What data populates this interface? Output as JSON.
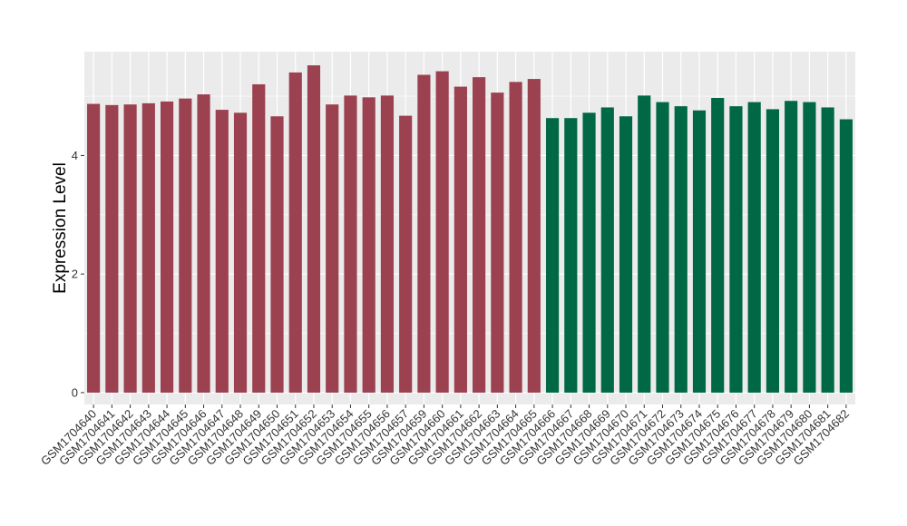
{
  "chart_data": {
    "type": "bar",
    "title": "",
    "xlabel": "",
    "ylabel": "Expression Level",
    "ylim": [
      -0.2,
      5.75
    ],
    "yticks": [
      0,
      2,
      4
    ],
    "grid": true,
    "colors": {
      "group1": "#9b4150",
      "group2": "#006845",
      "panel": "#ebebeb",
      "grid": "#ffffff"
    },
    "categories": [
      "GSM1704640",
      "GSM1704641",
      "GSM1704642",
      "GSM1704643",
      "GSM1704644",
      "GSM1704645",
      "GSM1704646",
      "GSM1704647",
      "GSM1704648",
      "GSM1704649",
      "GSM1704650",
      "GSM1704651",
      "GSM1704652",
      "GSM1704653",
      "GSM1704654",
      "GSM1704655",
      "GSM1704656",
      "GSM1704657",
      "GSM1704659",
      "GSM1704660",
      "GSM1704661",
      "GSM1704662",
      "GSM1704663",
      "GSM1704664",
      "GSM1704665",
      "GSM1704666",
      "GSM1704667",
      "GSM1704668",
      "GSM1704669",
      "GSM1704670",
      "GSM1704671",
      "GSM1704672",
      "GSM1704673",
      "GSM1704674",
      "GSM1704675",
      "GSM1704676",
      "GSM1704677",
      "GSM1704678",
      "GSM1704679",
      "GSM1704680",
      "GSM1704681",
      "GSM1704682"
    ],
    "values": [
      4.87,
      4.85,
      4.86,
      4.88,
      4.91,
      4.96,
      5.03,
      4.77,
      4.72,
      5.2,
      4.66,
      5.4,
      5.52,
      4.86,
      5.01,
      4.98,
      5.01,
      4.67,
      5.36,
      5.42,
      5.16,
      5.32,
      5.06,
      5.24,
      5.29,
      4.63,
      4.63,
      4.72,
      4.81,
      4.66,
      5.01,
      4.9,
      4.83,
      4.76,
      4.97,
      4.83,
      4.9,
      4.78,
      4.92,
      4.9,
      4.81,
      4.61
    ],
    "groups": [
      1,
      1,
      1,
      1,
      1,
      1,
      1,
      1,
      1,
      1,
      1,
      1,
      1,
      1,
      1,
      1,
      1,
      1,
      1,
      1,
      1,
      1,
      1,
      1,
      1,
      2,
      2,
      2,
      2,
      2,
      2,
      2,
      2,
      2,
      2,
      2,
      2,
      2,
      2,
      2,
      2,
      2
    ]
  }
}
